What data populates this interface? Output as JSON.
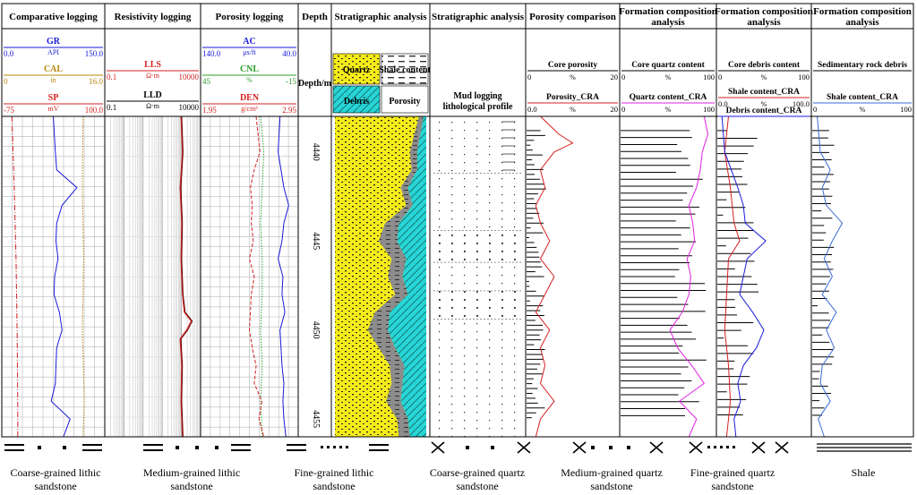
{
  "chart_data": {
    "type": "line",
    "title": "Well log composite: logging curves, stratigraphic analysis and formation composition",
    "depth_axis": {
      "label": "Depth/m",
      "range": [
        4438,
        4456
      ],
      "ticks": [
        4440,
        4445,
        4450,
        4455
      ]
    },
    "columns": [
      {
        "id": "comparative",
        "title": "Comparative logging",
        "curves": [
          {
            "name": "GR",
            "unit": "API",
            "min": "0.0",
            "max": "150.0",
            "color": "#1a1adb"
          },
          {
            "name": "CAL",
            "unit": "in",
            "min": "0",
            "max": "16.0",
            "color": "#b8860b"
          },
          {
            "name": "SP",
            "unit": "mV",
            "min": "-75",
            "max": "100.0",
            "color": "#d42020"
          }
        ]
      },
      {
        "id": "resistivity",
        "title": "Resistivity logging",
        "curves": [
          {
            "name": "LLS",
            "unit": "Ω·m",
            "min": "0.1",
            "max": "10000",
            "color": "#d42020"
          },
          {
            "name": "LLD",
            "unit": "Ω·m",
            "min": "0.1",
            "max": "10000",
            "color": "#000000"
          }
        ]
      },
      {
        "id": "porosity",
        "title": "Porosity logging",
        "curves": [
          {
            "name": "AC",
            "unit": "μs/ft",
            "min": "140.0",
            "max": "40.0",
            "color": "#1a1adb"
          },
          {
            "name": "CNL",
            "unit": "%",
            "min": "45",
            "max": "-15",
            "color": "#2a9d2a"
          },
          {
            "name": "DEN",
            "unit": "g/cm³",
            "min": "1.95",
            "max": "2.95",
            "color": "#d42020"
          }
        ]
      },
      {
        "id": "depth",
        "title": "Depth"
      },
      {
        "id": "strat1",
        "title": "Stratigraphic analysis",
        "legend": [
          "Quartz",
          "Shale content",
          "Debris",
          "Porosity"
        ]
      },
      {
        "id": "strat2",
        "title": "Stratigraphic analysis",
        "sub": "Mud logging lithological profile"
      },
      {
        "id": "porcomp",
        "title": "Porosity comparison",
        "curves": [
          {
            "name": "Core porosity",
            "unit": "%",
            "min": "0",
            "max": "20",
            "color": "#000000"
          },
          {
            "name": "Porosity_CRA",
            "unit": "%",
            "min": "0.0",
            "max": "20",
            "color": "#d42020"
          }
        ]
      },
      {
        "id": "fc1",
        "title": "Formation composition analysis",
        "curves": [
          {
            "name": "Core quartz content",
            "unit": "%",
            "min": "0",
            "max": "100",
            "color": "#000000"
          },
          {
            "name": "Quartz content_CRA",
            "unit": "%",
            "min": "0",
            "max": "100",
            "color": "#e020e0"
          }
        ]
      },
      {
        "id": "fc2",
        "title": "Formation composition analysis",
        "curves": [
          {
            "name": "Core debris content",
            "unit": "%",
            "min": "0",
            "max": "100",
            "color": "#000000"
          },
          {
            "name": "Shale content_CRA",
            "unit": "%",
            "min": "0.0",
            "max": "100.0",
            "color": "#d42020"
          },
          {
            "name": "Debris content_CRA",
            "unit": "",
            "min": "",
            "max": "",
            "color": "#1a1adb"
          }
        ]
      },
      {
        "id": "fc3",
        "title": "Formation composition analysis",
        "curves": [
          {
            "name": "Sedimentary rock debris",
            "unit": "",
            "min": "",
            "max": "",
            "color": "#000000"
          },
          {
            "name": "Shale content_CRA",
            "unit": "%",
            "min": "0",
            "max": "100",
            "color": "#3a6bd4"
          }
        ]
      }
    ],
    "series": [
      {
        "name": "GR",
        "depth": [
          4438,
          4440,
          4441,
          4442,
          4443,
          4444,
          4445,
          4446,
          4447,
          4448,
          4449,
          4450,
          4451,
          4452,
          4453,
          4454,
          4455,
          4456
        ],
        "values": [
          75,
          78,
          80,
          110,
          88,
          80,
          79,
          82,
          77,
          76,
          84,
          88,
          80,
          79,
          78,
          72,
          100,
          90
        ]
      },
      {
        "name": "CAL",
        "depth": [
          4438,
          4442,
          4446,
          4450,
          4454,
          4456
        ],
        "values": [
          12.7,
          12.6,
          12.8,
          12.6,
          12.9,
          12.7
        ]
      },
      {
        "name": "SP",
        "depth": [
          4438,
          4442,
          4446,
          4450,
          4454,
          4456
        ],
        "values": [
          -59,
          -55,
          -52,
          -50,
          -49,
          -49
        ]
      },
      {
        "name": "LLS",
        "depth": [
          4438,
          4440,
          4442,
          4444,
          4446,
          4448,
          4449,
          4449.5,
          4450,
          4450.5,
          4452,
          4454,
          4456
        ],
        "values": [
          1000,
          1200,
          900,
          1100,
          1000,
          1200,
          1500,
          3500,
          2000,
          900,
          1100,
          1000,
          1200
        ]
      },
      {
        "name": "LLD",
        "depth": [
          4438,
          4440,
          4442,
          4444,
          4446,
          4448,
          4449,
          4449.5,
          4450,
          4450.5,
          4452,
          4454,
          4456
        ],
        "values": [
          1100,
          1300,
          1000,
          1200,
          1100,
          1300,
          1700,
          4000,
          2300,
          1000,
          1200,
          1100,
          1300
        ]
      },
      {
        "name": "AC",
        "depth": [
          4438,
          4440,
          4442,
          4443,
          4444,
          4445,
          4446,
          4447,
          4448,
          4449,
          4450,
          4451,
          4452,
          4453,
          4454,
          4455,
          4456
        ],
        "values": [
          58,
          60,
          54,
          49,
          54,
          56,
          60,
          55,
          56,
          53,
          58,
          57,
          56,
          54,
          55,
          54,
          52
        ]
      },
      {
        "name": "CNL",
        "depth": [
          4438,
          4440,
          4442,
          4444,
          4446,
          4448,
          4450,
          4452,
          4454,
          4456
        ],
        "values": [
          8,
          6,
          7,
          8,
          7,
          7,
          8,
          7,
          8,
          7
        ]
      },
      {
        "name": "DEN",
        "depth": [
          4438,
          4440,
          4441,
          4442,
          4443,
          4444,
          4445,
          4446,
          4447,
          4448,
          4449,
          4450,
          4451,
          4452,
          4453,
          4454,
          4455,
          4456
        ],
        "values": [
          2.52,
          2.56,
          2.5,
          2.46,
          2.48,
          2.47,
          2.49,
          2.45,
          2.5,
          2.47,
          2.46,
          2.45,
          2.48,
          2.52,
          2.5,
          2.58,
          2.55,
          2.6
        ]
      },
      {
        "name": "Porosity_CRA",
        "depth": [
          4438,
          4439,
          4439.5,
          4440,
          4441,
          4442,
          4443,
          4444,
          4445,
          4446,
          4447,
          4448,
          4449,
          4450,
          4451,
          4452,
          4453,
          4454,
          4455,
          4456
        ],
        "values": [
          3,
          7,
          10,
          6,
          3,
          4,
          2,
          3,
          5,
          3,
          6,
          4,
          2,
          5,
          3,
          4,
          3,
          6,
          3,
          2
        ]
      },
      {
        "name": "Quartz content_CRA",
        "depth": [
          4438,
          4439,
          4440,
          4441,
          4442,
          4443,
          4444,
          4445,
          4446,
          4447,
          4448,
          4449,
          4450,
          4451,
          4452,
          4453,
          4454,
          4455,
          4456
        ],
        "values": [
          88,
          92,
          86,
          84,
          80,
          72,
          76,
          78,
          70,
          74,
          72,
          65,
          52,
          60,
          75,
          88,
          62,
          80,
          72
        ]
      },
      {
        "name": "Shale content_CRA",
        "depth": [
          4438,
          4440,
          4442,
          4444,
          4445,
          4446,
          4448,
          4450,
          4452,
          4454,
          4456
        ],
        "values": [
          12,
          8,
          14,
          18,
          24,
          12,
          10,
          8,
          12,
          14,
          10
        ]
      },
      {
        "name": "Debris content_CRA",
        "depth": [
          4438,
          4440,
          4441,
          4442,
          4443,
          4444,
          4445,
          4446,
          4447,
          4448,
          4449,
          4450,
          4451,
          4452,
          4453,
          4454,
          4455,
          4456
        ],
        "values": [
          5,
          8,
          15,
          22,
          28,
          30,
          52,
          32,
          28,
          24,
          38,
          50,
          42,
          28,
          22,
          25,
          18,
          20
        ]
      },
      {
        "name": "Shale content_CRA (col 10)",
        "depth": [
          4438,
          4440,
          4441,
          4442,
          4443,
          4444,
          4445,
          4446,
          4447,
          4448,
          4449,
          4450,
          4451,
          4452,
          4453,
          4454,
          4455,
          4456
        ],
        "values": [
          5,
          8,
          18,
          10,
          14,
          30,
          20,
          12,
          20,
          10,
          24,
          14,
          22,
          10,
          8,
          18,
          6,
          12
        ]
      }
    ],
    "legend_items": [
      {
        "label": "Coarse-grained lithic sandstone",
        "symbol": "coarse-lithic"
      },
      {
        "label": "Medium-grained lithic sandstone",
        "symbol": "medium-lithic"
      },
      {
        "label": "Fine-grained lithic sandstone",
        "symbol": "fine-lithic"
      },
      {
        "label": "Coarse-grained quartz sandstone",
        "symbol": "coarse-quartz"
      },
      {
        "label": "Medium-grained quartz sandstone",
        "symbol": "medium-quartz"
      },
      {
        "label": "Fine-grained quartz sandstone",
        "symbol": "fine-quartz"
      },
      {
        "label": "Shale",
        "symbol": "shale"
      }
    ]
  }
}
